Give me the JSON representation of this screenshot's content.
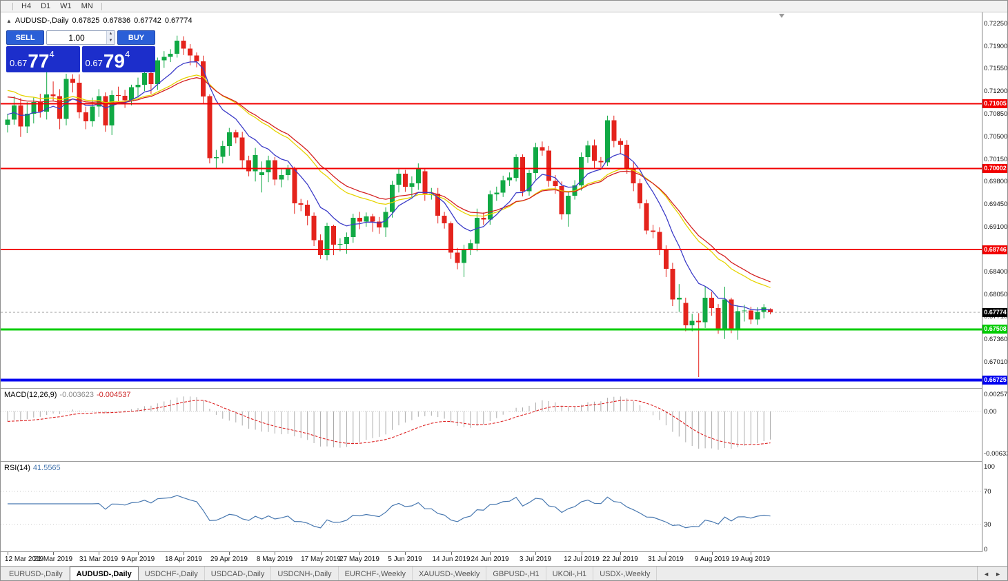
{
  "toolbar": {
    "timeframes": [
      {
        "label": "H4"
      },
      {
        "label": "D1"
      },
      {
        "label": "W1"
      },
      {
        "label": "MN"
      }
    ]
  },
  "icons": {
    "one_click_toggle": "▲",
    "spin_up": "▲",
    "spin_down": "▼",
    "tabs_left": "◄",
    "tabs_right": "►"
  },
  "header": {
    "symbol": "AUDUSD-,Daily",
    "open": "0.67825",
    "high": "0.67836",
    "low": "0.67742",
    "close": "0.67774"
  },
  "trade_panel": {
    "sell_label": "SELL",
    "buy_label": "BUY",
    "volume": "1.00",
    "sell_price": {
      "prefix": "0.67",
      "big": "77",
      "sup": "4"
    },
    "buy_price": {
      "prefix": "0.67",
      "big": "79",
      "sup": "4"
    }
  },
  "indicators": {
    "macd": {
      "label": "MACD(12,26,9)",
      "value_main": "-0.003623",
      "value_signal": "-0.004537",
      "axis": [
        {
          "value": 0.002574,
          "label": "0.002574"
        },
        {
          "value": 0.0,
          "label": "0.00"
        },
        {
          "value": -0.006326,
          "label": "-0.006326"
        }
      ]
    },
    "rsi": {
      "label": "RSI(14)",
      "value": "41.5565",
      "axis": [
        {
          "value": 100,
          "label": "100"
        },
        {
          "value": 70,
          "label": "70"
        },
        {
          "value": 30,
          "label": "30"
        },
        {
          "value": 0,
          "label": "0"
        }
      ]
    }
  },
  "price_axis": {
    "labels": [
      "0.72250",
      "0.71900",
      "0.71550",
      "0.71200",
      "0.70850",
      "0.70500",
      "0.70150",
      "0.69800",
      "0.69450",
      "0.69100",
      "0.68750",
      "0.68400",
      "0.68050",
      "0.67710",
      "0.67360",
      "0.67010"
    ]
  },
  "levels": [
    {
      "price": 0.71005,
      "label": "0.71005",
      "color_key": "level_red",
      "width": 2
    },
    {
      "price": 0.70002,
      "label": "0.70002",
      "color_key": "level_red",
      "width": 2
    },
    {
      "price": 0.68746,
      "label": "0.68746",
      "color_key": "level_red",
      "width": 2
    },
    {
      "price": 0.67508,
      "label": "0.67508",
      "color_key": "level_green",
      "width": 3
    },
    {
      "price": 0.66725,
      "label": "0.66725",
      "color_key": "level_blue",
      "width": 4
    }
  ],
  "current_price": {
    "value": 0.67774,
    "label": "0.67774"
  },
  "colors": {
    "bull": "#10a944",
    "bear": "#e4231c",
    "ma_fast": "#3c3cc8",
    "ma_mid": "#e6d400",
    "ma_slow": "#d42020",
    "macd_hist": "#aaaaaa",
    "macd_signal": "#dd2222",
    "rsi_line": "#4878b0",
    "level_red": "#f20000",
    "level_green": "#00cc00",
    "level_blue": "#0000f0",
    "price_marker_bg": "#000000",
    "buttons_blue": "#2a5fd7",
    "price_box_blue": "#1c2ecb"
  },
  "chart_data": {
    "type": "candlestick",
    "title": "AUDUSD-,Daily",
    "ylim": [
      0.666,
      0.7242
    ],
    "time_labels": [
      {
        "index": 0,
        "label": "12 Mar 2019"
      },
      {
        "index": 7,
        "label": "21 Mar 2019"
      },
      {
        "index": 14,
        "label": "31 Mar 2019"
      },
      {
        "index": 20,
        "label": "9 Apr 2019"
      },
      {
        "index": 27,
        "label": "18 Apr 2019"
      },
      {
        "index": 34,
        "label": "29 Apr 2019"
      },
      {
        "index": 41,
        "label": "8 May 2019"
      },
      {
        "index": 48,
        "label": "17 May 2019"
      },
      {
        "index": 54,
        "label": "27 May 2019"
      },
      {
        "index": 61,
        "label": "5 Jun 2019"
      },
      {
        "index": 68,
        "label": "14 Jun 2019"
      },
      {
        "index": 74,
        "label": "24 Jun 2019"
      },
      {
        "index": 81,
        "label": "3 Jul 2019"
      },
      {
        "index": 88,
        "label": "12 Jul 2019"
      },
      {
        "index": 94,
        "label": "22 Jul 2019"
      },
      {
        "index": 101,
        "label": "31 Jul 2019"
      },
      {
        "index": 108,
        "label": "9 Aug 2019"
      },
      {
        "index": 114,
        "label": "19 Aug 2019"
      }
    ],
    "overlays": [
      {
        "name": "ma-yellow",
        "type": "ema",
        "period": 21,
        "seed_offset": 0.0045,
        "color_key": "ma_mid"
      },
      {
        "name": "ma-red",
        "type": "ema",
        "period": 24,
        "seed_offset": 0.0035,
        "color_key": "ma_slow"
      },
      {
        "name": "ma-blue",
        "type": "ema",
        "period": 9,
        "seed_offset": 0.0008,
        "color_key": "ma_fast"
      }
    ],
    "macd": {
      "fast": 12,
      "slow": 26,
      "signal": 9,
      "ylim": [
        -0.00746,
        0.0034
      ],
      "seed_offset_fast": 0.0005,
      "seed_offset_slow": 0.002
    },
    "rsi": {
      "period": 14,
      "levels": [
        70,
        30
      ],
      "ylim": [
        0,
        100
      ]
    },
    "ohlc": [
      [
        0.7068,
        0.7085,
        0.7056,
        0.7076
      ],
      [
        0.7076,
        0.7112,
        0.7068,
        0.7098
      ],
      [
        0.7098,
        0.7109,
        0.7049,
        0.7065
      ],
      [
        0.7065,
        0.7103,
        0.7055,
        0.7085
      ],
      [
        0.7085,
        0.711,
        0.707,
        0.7103
      ],
      [
        0.7103,
        0.7116,
        0.7079,
        0.7088
      ],
      [
        0.7088,
        0.715,
        0.7076,
        0.7115
      ],
      [
        0.7115,
        0.7135,
        0.7104,
        0.7112
      ],
      [
        0.7112,
        0.7123,
        0.7061,
        0.7077
      ],
      [
        0.7077,
        0.7147,
        0.7067,
        0.7139
      ],
      [
        0.7139,
        0.7146,
        0.7118,
        0.7133
      ],
      [
        0.7133,
        0.7146,
        0.7078,
        0.7087
      ],
      [
        0.7087,
        0.7096,
        0.7061,
        0.7073
      ],
      [
        0.7073,
        0.711,
        0.7065,
        0.7096
      ],
      [
        0.7096,
        0.7123,
        0.708,
        0.7112
      ],
      [
        0.7112,
        0.7118,
        0.7057,
        0.7067
      ],
      [
        0.7067,
        0.7121,
        0.7052,
        0.7114
      ],
      [
        0.7114,
        0.7127,
        0.7104,
        0.7113
      ],
      [
        0.7113,
        0.7122,
        0.7094,
        0.7106
      ],
      [
        0.7106,
        0.713,
        0.7098,
        0.7126
      ],
      [
        0.7126,
        0.7141,
        0.711,
        0.713
      ],
      [
        0.713,
        0.7153,
        0.712,
        0.7148
      ],
      [
        0.7148,
        0.7155,
        0.7116,
        0.7131
      ],
      [
        0.7131,
        0.7172,
        0.7122,
        0.7168
      ],
      [
        0.7168,
        0.7182,
        0.7156,
        0.7173
      ],
      [
        0.7173,
        0.7185,
        0.7165,
        0.7178
      ],
      [
        0.7178,
        0.7206,
        0.7172,
        0.7198
      ],
      [
        0.7198,
        0.7205,
        0.7176,
        0.7186
      ],
      [
        0.7186,
        0.7193,
        0.716,
        0.7175
      ],
      [
        0.7175,
        0.718,
        0.7157,
        0.7166
      ],
      [
        0.7166,
        0.7175,
        0.71,
        0.7112
      ],
      [
        0.7112,
        0.7115,
        0.7008,
        0.7016
      ],
      [
        0.7016,
        0.7029,
        0.7,
        0.7018
      ],
      [
        0.7018,
        0.7043,
        0.7008,
        0.7035
      ],
      [
        0.7035,
        0.7063,
        0.702,
        0.7056
      ],
      [
        0.7056,
        0.706,
        0.7039,
        0.7048
      ],
      [
        0.7048,
        0.7057,
        0.7001,
        0.7013
      ],
      [
        0.7013,
        0.702,
        0.6988,
        0.6996
      ],
      [
        0.6996,
        0.7032,
        0.698,
        0.7021
      ],
      [
        0.699,
        0.7011,
        0.6963,
        0.6994
      ],
      [
        0.6994,
        0.702,
        0.6979,
        0.7013
      ],
      [
        0.7013,
        0.7018,
        0.6974,
        0.6983
      ],
      [
        0.6983,
        0.6999,
        0.6971,
        0.699
      ],
      [
        0.699,
        0.7006,
        0.6982,
        0.7
      ],
      [
        0.7,
        0.7003,
        0.693,
        0.6946
      ],
      [
        0.6946,
        0.6953,
        0.6934,
        0.6944
      ],
      [
        0.6944,
        0.6951,
        0.6912,
        0.6927
      ],
      [
        0.6927,
        0.6932,
        0.688,
        0.6889
      ],
      [
        0.6889,
        0.6898,
        0.686,
        0.6866
      ],
      [
        0.6866,
        0.6916,
        0.6858,
        0.6911
      ],
      [
        0.6911,
        0.6913,
        0.6866,
        0.6882
      ],
      [
        0.6882,
        0.6892,
        0.6872,
        0.6883
      ],
      [
        0.6883,
        0.6901,
        0.6868,
        0.6894
      ],
      [
        0.6894,
        0.693,
        0.6885,
        0.6924
      ],
      [
        0.6924,
        0.6933,
        0.6906,
        0.6918
      ],
      [
        0.6918,
        0.6932,
        0.691,
        0.6926
      ],
      [
        0.6926,
        0.693,
        0.6902,
        0.6918
      ],
      [
        0.6918,
        0.6925,
        0.6899,
        0.6909
      ],
      [
        0.6909,
        0.694,
        0.6894,
        0.6933
      ],
      [
        0.6933,
        0.6981,
        0.6924,
        0.6975
      ],
      [
        0.6975,
        0.7001,
        0.6963,
        0.6992
      ],
      [
        0.6992,
        0.6998,
        0.6964,
        0.6972
      ],
      [
        0.6972,
        0.6988,
        0.6956,
        0.6977
      ],
      [
        0.6977,
        0.7008,
        0.6967,
        0.7
      ],
      [
        0.6996,
        0.7,
        0.695,
        0.6961
      ],
      [
        0.6961,
        0.697,
        0.6952,
        0.6961
      ],
      [
        0.6961,
        0.697,
        0.6915,
        0.6927
      ],
      [
        0.6927,
        0.6933,
        0.6907,
        0.6915
      ],
      [
        0.6915,
        0.6918,
        0.686,
        0.687
      ],
      [
        0.687,
        0.6877,
        0.6844,
        0.6854
      ],
      [
        0.6854,
        0.6882,
        0.6832,
        0.6875
      ],
      [
        0.6875,
        0.689,
        0.6866,
        0.6884
      ],
      [
        0.6884,
        0.6938,
        0.6872,
        0.6924
      ],
      [
        0.6924,
        0.6932,
        0.6913,
        0.6921
      ],
      [
        0.6921,
        0.6966,
        0.6913,
        0.696
      ],
      [
        0.696,
        0.6972,
        0.695,
        0.6963
      ],
      [
        0.6963,
        0.6989,
        0.6956,
        0.6982
      ],
      [
        0.6982,
        0.6994,
        0.6973,
        0.6986
      ],
      [
        0.6986,
        0.7022,
        0.698,
        0.7018
      ],
      [
        0.7018,
        0.7022,
        0.6957,
        0.6965
      ],
      [
        0.6965,
        0.6998,
        0.6958,
        0.6993
      ],
      [
        0.6993,
        0.704,
        0.6983,
        0.7033
      ],
      [
        0.7033,
        0.7042,
        0.702,
        0.7028
      ],
      [
        0.7028,
        0.7035,
        0.6972,
        0.6981
      ],
      [
        0.6981,
        0.699,
        0.6961,
        0.6973
      ],
      [
        0.6973,
        0.698,
        0.6921,
        0.6929
      ],
      [
        0.6929,
        0.6964,
        0.691,
        0.6958
      ],
      [
        0.6958,
        0.6982,
        0.6952,
        0.6974
      ],
      [
        0.6974,
        0.7025,
        0.6966,
        0.7018
      ],
      [
        0.7018,
        0.7043,
        0.7009,
        0.7036
      ],
      [
        0.7036,
        0.7045,
        0.7,
        0.7012
      ],
      [
        0.7012,
        0.7018,
        0.7002,
        0.701
      ],
      [
        0.701,
        0.7082,
        0.7004,
        0.7075
      ],
      [
        0.7075,
        0.7082,
        0.7033,
        0.7043
      ],
      [
        0.7043,
        0.7047,
        0.7022,
        0.7037
      ],
      [
        0.7037,
        0.7044,
        0.6992,
        0.7001
      ],
      [
        0.7001,
        0.701,
        0.6965,
        0.6977
      ],
      [
        0.6977,
        0.6984,
        0.6938,
        0.6946
      ],
      [
        0.6946,
        0.6952,
        0.6898,
        0.6904
      ],
      [
        0.6904,
        0.6913,
        0.6892,
        0.6902
      ],
      [
        0.6902,
        0.6909,
        0.6866,
        0.6875
      ],
      [
        0.6875,
        0.6881,
        0.6832,
        0.6845
      ],
      [
        0.6845,
        0.6854,
        0.6787,
        0.6797
      ],
      [
        0.6797,
        0.6821,
        0.6778,
        0.68
      ],
      [
        0.6792,
        0.68,
        0.6748,
        0.6757
      ],
      [
        0.6757,
        0.6775,
        0.6748,
        0.6764
      ],
      [
        0.6764,
        0.6776,
        0.6677,
        0.6762
      ],
      [
        0.6762,
        0.6818,
        0.6753,
        0.68
      ],
      [
        0.68,
        0.6809,
        0.6772,
        0.6784
      ],
      [
        0.6784,
        0.679,
        0.6744,
        0.6752
      ],
      [
        0.6752,
        0.6817,
        0.6736,
        0.6797
      ],
      [
        0.6797,
        0.68,
        0.6745,
        0.675
      ],
      [
        0.675,
        0.6788,
        0.6735,
        0.6779
      ],
      [
        0.6779,
        0.6789,
        0.6763,
        0.678
      ],
      [
        0.678,
        0.6786,
        0.6759,
        0.6766
      ],
      [
        0.6766,
        0.6785,
        0.6758,
        0.6778
      ],
      [
        0.6778,
        0.679,
        0.6768,
        0.6785
      ],
      [
        0.67825,
        0.67836,
        0.67742,
        0.67774
      ]
    ]
  },
  "tabs": {
    "items": [
      {
        "label": "EURUSD-,Daily",
        "active": false
      },
      {
        "label": "AUDUSD-,Daily",
        "active": true
      },
      {
        "label": "USDCHF-,Daily",
        "active": false
      },
      {
        "label": "USDCAD-,Daily",
        "active": false
      },
      {
        "label": "USDCNH-,Daily",
        "active": false
      },
      {
        "label": "EURCHF-,Weekly",
        "active": false
      },
      {
        "label": "XAUUSD-,Weekly",
        "active": false
      },
      {
        "label": "GBPUSD-,H1",
        "active": false
      },
      {
        "label": "UKOil-,H1",
        "active": false
      },
      {
        "label": "USDX-,Weekly",
        "active": false
      }
    ]
  }
}
